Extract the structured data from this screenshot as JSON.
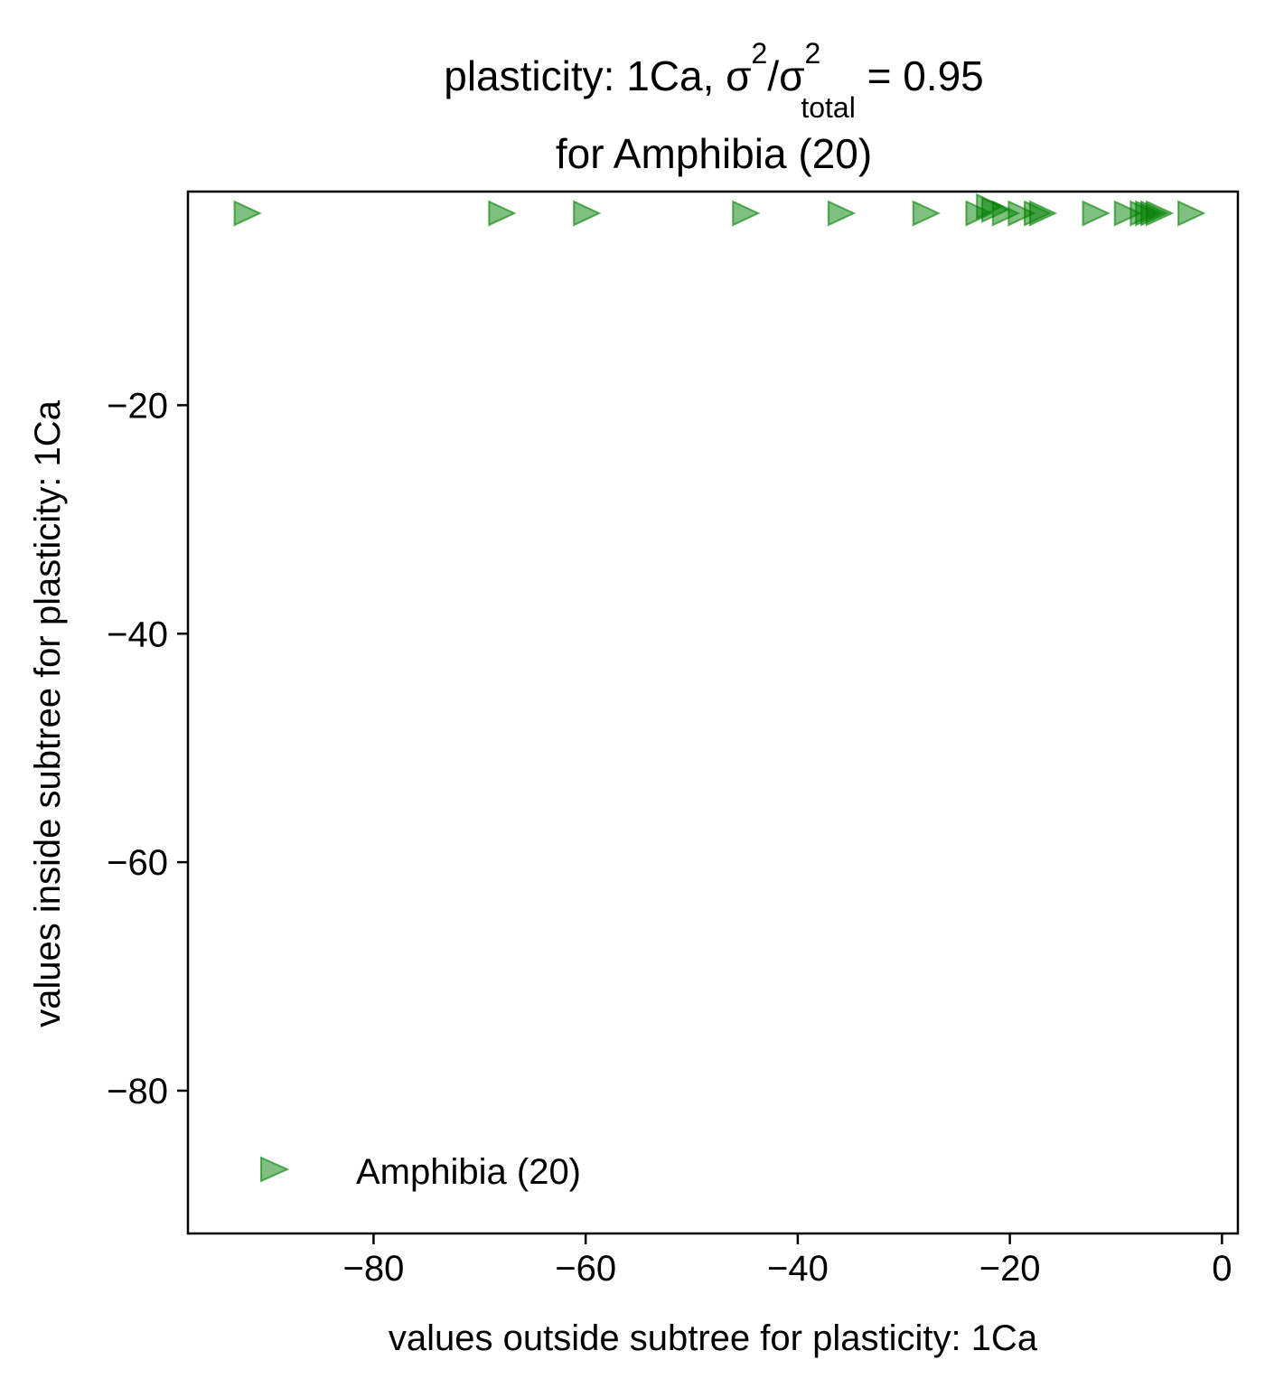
{
  "chart_data": {
    "type": "scatter",
    "title": {
      "line1_prefix": "plasticity: 1Ca, σ",
      "sup1": "2",
      "slash_sigma": "/σ",
      "sup2": "2",
      "sub": "total",
      "suffix": " =  0.95",
      "line2": "for Amphibia (20)"
    },
    "xlabel": "values outside subtree for plasticity: 1Ca",
    "ylabel": "values inside subtree for plasticity: 1Ca",
    "xlim": [
      -97.5,
      1.5
    ],
    "ylim": [
      -92.5,
      -1.3
    ],
    "xticks": [
      {
        "value": -80,
        "label": "−80"
      },
      {
        "value": -60,
        "label": "−60"
      },
      {
        "value": -40,
        "label": "−40"
      },
      {
        "value": -20,
        "label": "−20"
      },
      {
        "value": 0,
        "label": "0"
      }
    ],
    "yticks": [
      {
        "value": -20,
        "label": "−20"
      },
      {
        "value": -40,
        "label": "−40"
      },
      {
        "value": -60,
        "label": "−60"
      },
      {
        "value": -80,
        "label": "−80"
      }
    ],
    "grid": false,
    "legend": {
      "position": "lower-left",
      "label": "Amphibia (20)"
    },
    "marker": "triangle-right",
    "color": "#008000",
    "series": [
      {
        "name": "Amphibia (20)",
        "points": [
          {
            "x": -92.0,
            "y": -3.2
          },
          {
            "x": -68.0,
            "y": -3.2
          },
          {
            "x": -60.0,
            "y": -3.2
          },
          {
            "x": -45.0,
            "y": -3.2
          },
          {
            "x": -36.0,
            "y": -3.2
          },
          {
            "x": -28.0,
            "y": -3.2
          },
          {
            "x": -23.0,
            "y": -3.2
          },
          {
            "x": -22.0,
            "y": -2.6
          },
          {
            "x": -21.5,
            "y": -2.9
          },
          {
            "x": -20.5,
            "y": -3.2
          },
          {
            "x": -19.0,
            "y": -3.2
          },
          {
            "x": -17.5,
            "y": -3.2
          },
          {
            "x": -17.0,
            "y": -3.2
          },
          {
            "x": -12.0,
            "y": -3.2
          },
          {
            "x": -9.0,
            "y": -3.2
          },
          {
            "x": -7.5,
            "y": -3.2
          },
          {
            "x": -7.0,
            "y": -3.2
          },
          {
            "x": -6.5,
            "y": -3.2
          },
          {
            "x": -6.0,
            "y": -3.2
          },
          {
            "x": -3.0,
            "y": -3.2
          }
        ]
      }
    ]
  }
}
